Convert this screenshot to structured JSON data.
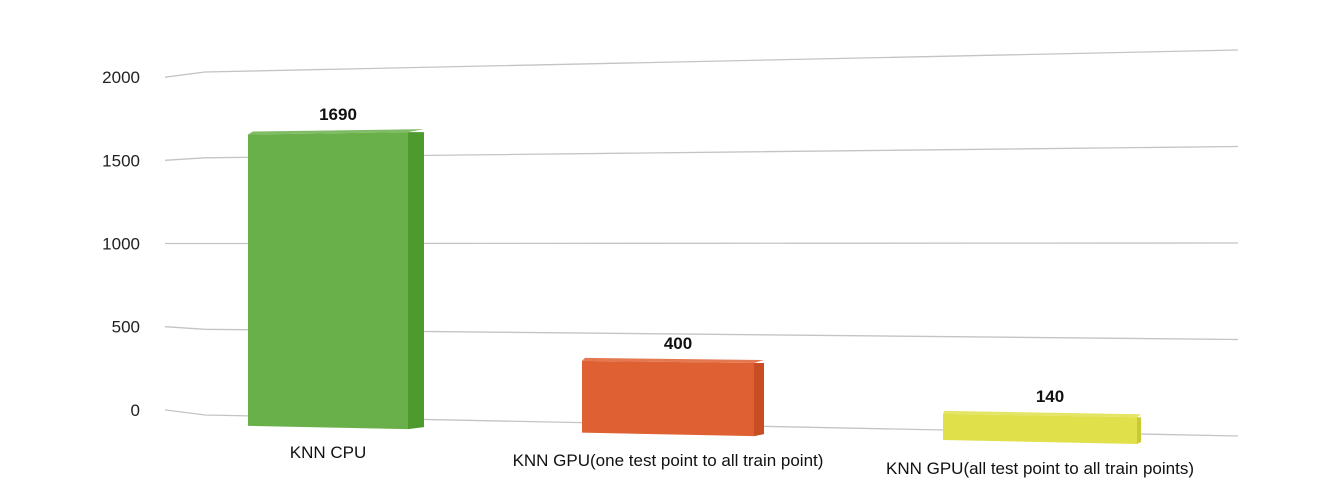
{
  "chart_data": {
    "type": "bar",
    "title": "",
    "xlabel": "",
    "ylabel": "",
    "ylim": [
      0,
      2000
    ],
    "yticks": [
      0,
      500,
      1000,
      1500,
      2000
    ],
    "grid": true,
    "categories": [
      "KNN CPU",
      "KNN GPU(one test point to all train point)",
      "KNN GPU(all test point to all train points)"
    ],
    "values": [
      1690,
      400,
      140
    ],
    "data_labels": [
      "1690",
      "400",
      "140"
    ],
    "colors": [
      "#6ab04a",
      "#df6033",
      "#dfe04a"
    ],
    "side_colors": [
      "#4f9a2f",
      "#c94d22",
      "#c9cb36"
    ]
  }
}
